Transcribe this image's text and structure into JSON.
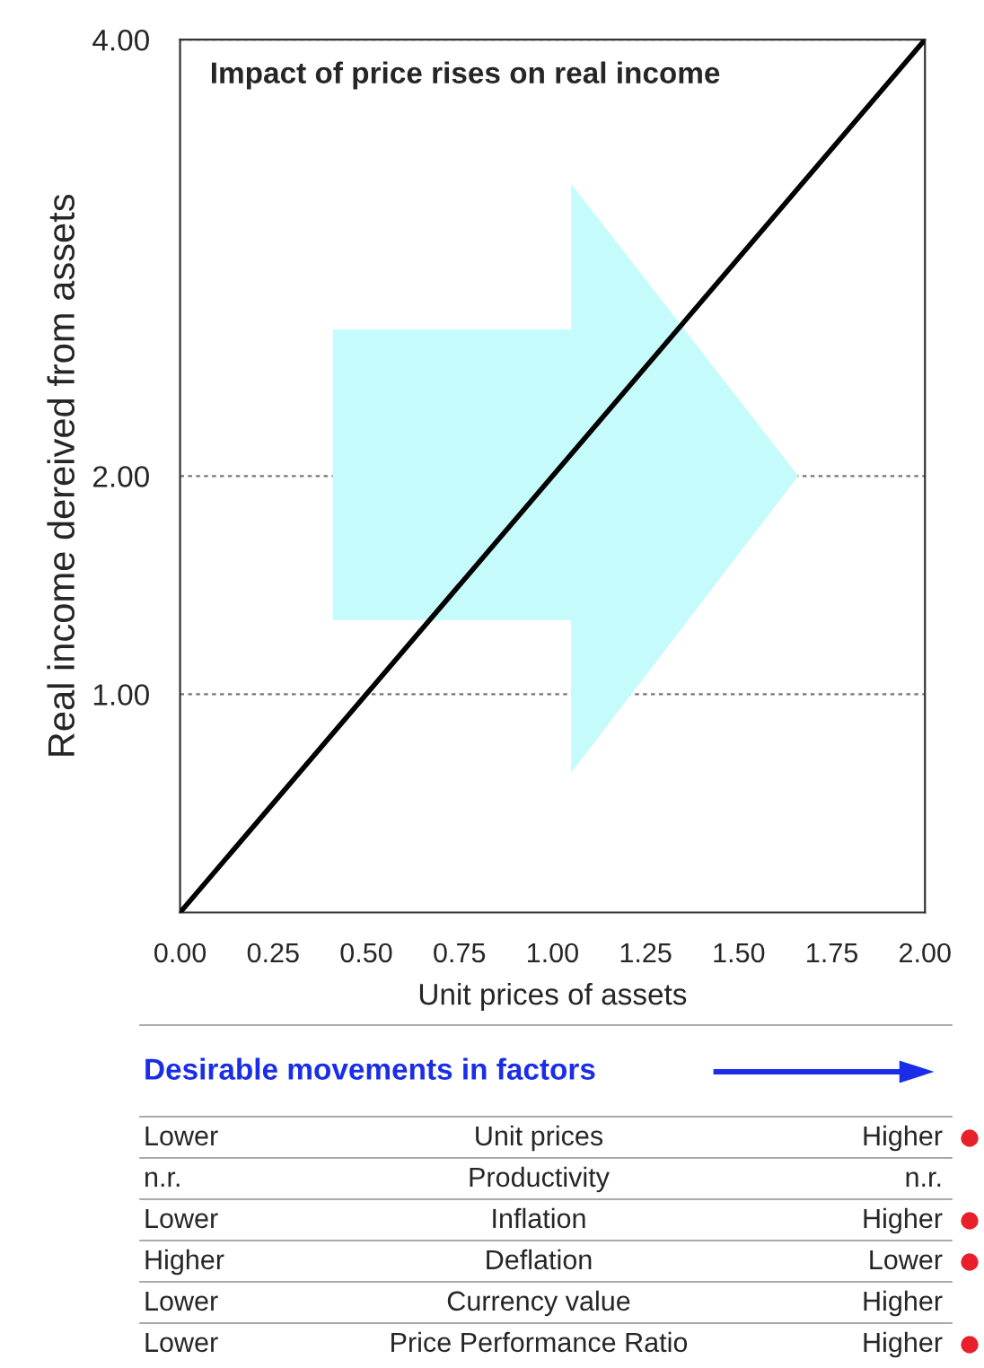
{
  "chart_data": {
    "type": "line",
    "title": "Impact of price rises on real income",
    "xlabel": "Unit prices of assets",
    "ylabel": "Real income dereived from assets",
    "x": [
      0,
      2
    ],
    "series": [
      {
        "color": "#000000",
        "values": [
          0,
          4
        ]
      }
    ],
    "xlim": [
      0,
      2
    ],
    "xticks": [
      {
        "value": 0,
        "label": "0.00"
      },
      {
        "value": 0.25,
        "label": "0.25"
      },
      {
        "value": 0.5,
        "label": "0.50"
      },
      {
        "value": 0.75,
        "label": "0.75"
      },
      {
        "value": 1,
        "label": "1.00"
      },
      {
        "value": 1.25,
        "label": "1.25"
      },
      {
        "value": 1.5,
        "label": "1.50"
      },
      {
        "value": 1.75,
        "label": "1.75"
      },
      {
        "value": 2,
        "label": "2.00"
      }
    ],
    "ylim": [
      0,
      4
    ],
    "yticks": [
      {
        "value": 1,
        "label": "1.00"
      },
      {
        "value": 2,
        "label": "2.00"
      },
      {
        "value": 4,
        "label": "4.00"
      }
    ],
    "grid": "y",
    "line_style": "solid",
    "marker": "none",
    "annotations": [
      "Desirable movements in factors",
      "Lower",
      "Unit prices",
      "Higher",
      "n.r.",
      "Productivity",
      "n.r.",
      "Lower",
      "Inflation",
      "Higher",
      "Higher",
      "Deflation",
      "Lower",
      "Lower",
      "Currency value",
      "Higher",
      "Lower",
      "Price Performance Ratio",
      "Higher"
    ]
  }
}
